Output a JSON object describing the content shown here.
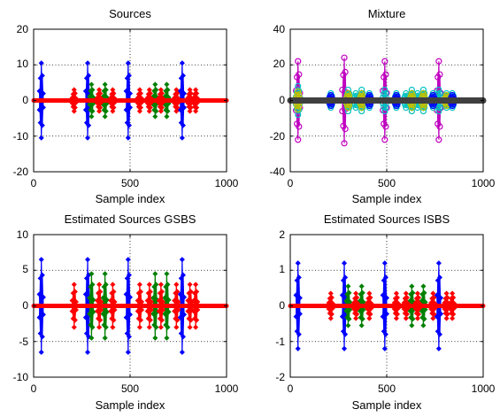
{
  "colors": {
    "blue": "#0000ff",
    "green": "#008000",
    "red": "#ff0000",
    "magenta": "#c000c0",
    "cyan": "#00c0c0",
    "yellow": "#c0c000",
    "dark_gray": "#404040"
  },
  "chart_data": [
    {
      "type": "line",
      "title": "Sources",
      "xlabel": "Sample index",
      "ylabel": "",
      "xlim": [
        0,
        1000
      ],
      "ylim": [
        -20,
        20
      ],
      "xticks": [
        "0",
        "500",
        "1000"
      ],
      "yticks": [
        "-20",
        "-10",
        "0",
        "10",
        "20"
      ],
      "grid": "dotted at x=500, y=-10, 0, 10",
      "marker": "diamond",
      "series": [
        {
          "color": "blue",
          "bursts": [
            {
              "center": 40,
              "amplitude": 10.5
            },
            {
              "center": 280,
              "amplitude": 10.5
            },
            {
              "center": 490,
              "amplitude": 10.5
            },
            {
              "center": 770,
              "amplitude": 10.5
            }
          ]
        },
        {
          "color": "green",
          "bursts": [
            {
              "center": 300,
              "amplitude": 4.5
            },
            {
              "center": 370,
              "amplitude": 4.5
            },
            {
              "center": 630,
              "amplitude": 4.5
            },
            {
              "center": 690,
              "amplitude": 4.5
            }
          ]
        },
        {
          "color": "red",
          "bursts": [
            {
              "center": 210,
              "amplitude": 3.0
            },
            {
              "center": 340,
              "amplitude": 3.0
            },
            {
              "center": 410,
              "amplitude": 3.0
            },
            {
              "center": 550,
              "amplitude": 3.0
            },
            {
              "center": 600,
              "amplitude": 3.0
            },
            {
              "center": 660,
              "amplitude": 3.0
            },
            {
              "center": 740,
              "amplitude": 3.0
            },
            {
              "center": 810,
              "amplitude": 3.0
            },
            {
              "center": 840,
              "amplitude": 3.0
            }
          ],
          "baseline": [
            0,
            1000
          ]
        }
      ]
    },
    {
      "type": "line",
      "title": "Mixture",
      "xlabel": "Sample index",
      "ylabel": "",
      "xlim": [
        0,
        1000
      ],
      "ylim": [
        -40,
        40
      ],
      "xticks": [
        "0",
        "500",
        "1000"
      ],
      "yticks": [
        "-40",
        "-20",
        "0",
        "20",
        "40"
      ],
      "grid": "dotted at x=500, y=-20, 0, 20",
      "marker": "circle",
      "series": [
        {
          "color": "magenta",
          "bursts": [
            {
              "center": 40,
              "amplitude": 22
            },
            {
              "center": 280,
              "amplitude": 24
            },
            {
              "center": 490,
              "amplitude": 22
            },
            {
              "center": 770,
              "amplitude": 22
            }
          ]
        },
        {
          "color": "cyan",
          "bursts": [
            {
              "center": 40,
              "amplitude": 8
            },
            {
              "center": 210,
              "amplitude": 4
            },
            {
              "center": 300,
              "amplitude": 6
            },
            {
              "center": 340,
              "amplitude": 4
            },
            {
              "center": 370,
              "amplitude": 6
            },
            {
              "center": 410,
              "amplitude": 4
            },
            {
              "center": 490,
              "amplitude": 6
            },
            {
              "center": 550,
              "amplitude": 4
            },
            {
              "center": 600,
              "amplitude": 4
            },
            {
              "center": 630,
              "amplitude": 6
            },
            {
              "center": 660,
              "amplitude": 4
            },
            {
              "center": 690,
              "amplitude": 6
            },
            {
              "center": 740,
              "amplitude": 4
            },
            {
              "center": 770,
              "amplitude": 6
            },
            {
              "center": 810,
              "amplitude": 4
            },
            {
              "center": 840,
              "amplitude": 4
            }
          ]
        },
        {
          "color": "yellow",
          "bursts": [
            {
              "center": 40,
              "amplitude": 5
            },
            {
              "center": 300,
              "amplitude": 4
            },
            {
              "center": 370,
              "amplitude": 4
            },
            {
              "center": 630,
              "amplitude": 4
            },
            {
              "center": 690,
              "amplitude": 4
            },
            {
              "center": 810,
              "amplitude": 3
            }
          ]
        },
        {
          "color": "blue",
          "bursts": [
            {
              "center": 210,
              "amplitude": 3
            },
            {
              "center": 410,
              "amplitude": 3
            },
            {
              "center": 550,
              "amplitude": 3
            },
            {
              "center": 740,
              "amplitude": 3
            },
            {
              "center": 840,
              "amplitude": 3
            }
          ]
        },
        {
          "color": "dark_gray",
          "bursts": [],
          "baseline": [
            0,
            1000
          ]
        }
      ]
    },
    {
      "type": "line",
      "title": "Estimated Sources GSBS",
      "xlabel": "Sample index",
      "ylabel": "",
      "xlim": [
        0,
        1000
      ],
      "ylim": [
        -10,
        10
      ],
      "xticks": [
        "0",
        "500",
        "1000"
      ],
      "yticks": [
        "-10",
        "-5",
        "0",
        "5",
        "10"
      ],
      "grid": "dotted at x=500, y=-5, 0, 5",
      "marker": "diamond",
      "series": [
        {
          "color": "blue",
          "bursts": [
            {
              "center": 40,
              "amplitude": 6.5
            },
            {
              "center": 280,
              "amplitude": 6.5
            },
            {
              "center": 490,
              "amplitude": 6.5
            },
            {
              "center": 770,
              "amplitude": 6.5
            }
          ]
        },
        {
          "color": "green",
          "bursts": [
            {
              "center": 300,
              "amplitude": 4.5
            },
            {
              "center": 370,
              "amplitude": 4.5
            },
            {
              "center": 630,
              "amplitude": 4.5
            },
            {
              "center": 690,
              "amplitude": 4.5
            }
          ]
        },
        {
          "color": "red",
          "bursts": [
            {
              "center": 210,
              "amplitude": 3.0
            },
            {
              "center": 340,
              "amplitude": 3.0
            },
            {
              "center": 410,
              "amplitude": 3.0
            },
            {
              "center": 550,
              "amplitude": 3.0
            },
            {
              "center": 600,
              "amplitude": 3.0
            },
            {
              "center": 660,
              "amplitude": 3.0
            },
            {
              "center": 740,
              "amplitude": 3.0
            },
            {
              "center": 810,
              "amplitude": 3.0
            },
            {
              "center": 840,
              "amplitude": 3.0
            }
          ],
          "baseline": [
            0,
            1000
          ]
        }
      ]
    },
    {
      "type": "line",
      "title": "Estimated Sources ISBS",
      "xlabel": "Sample index",
      "ylabel": "",
      "xlim": [
        0,
        1000
      ],
      "ylim": [
        -2,
        2
      ],
      "xticks": [
        "0",
        "500",
        "1000"
      ],
      "yticks": [
        "-2",
        "-1",
        "0",
        "1",
        "2"
      ],
      "grid": "dotted at x=500, y=-1, 0, 1",
      "marker": "diamond",
      "series": [
        {
          "color": "blue",
          "bursts": [
            {
              "center": 40,
              "amplitude": 1.2
            },
            {
              "center": 280,
              "amplitude": 1.2
            },
            {
              "center": 490,
              "amplitude": 1.2
            },
            {
              "center": 770,
              "amplitude": 1.2
            }
          ]
        },
        {
          "color": "green",
          "bursts": [
            {
              "center": 300,
              "amplitude": 0.55
            },
            {
              "center": 370,
              "amplitude": 0.55
            },
            {
              "center": 630,
              "amplitude": 0.55
            },
            {
              "center": 690,
              "amplitude": 0.55
            }
          ]
        },
        {
          "color": "red",
          "bursts": [
            {
              "center": 210,
              "amplitude": 0.35
            },
            {
              "center": 340,
              "amplitude": 0.35
            },
            {
              "center": 410,
              "amplitude": 0.35
            },
            {
              "center": 550,
              "amplitude": 0.35
            },
            {
              "center": 600,
              "amplitude": 0.35
            },
            {
              "center": 660,
              "amplitude": 0.35
            },
            {
              "center": 740,
              "amplitude": 0.35
            },
            {
              "center": 810,
              "amplitude": 0.35
            },
            {
              "center": 840,
              "amplitude": 0.35
            }
          ],
          "baseline": [
            0,
            1000
          ]
        }
      ]
    }
  ]
}
